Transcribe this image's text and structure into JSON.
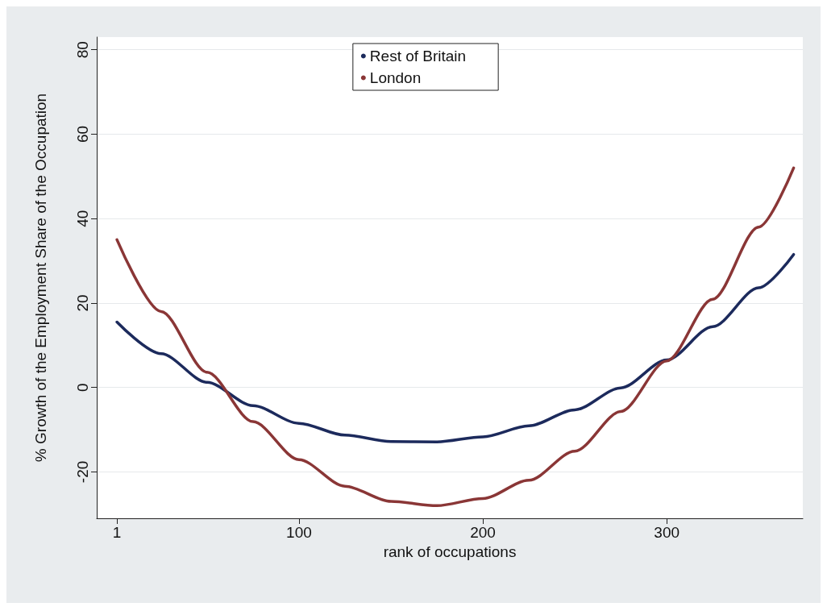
{
  "chart_data": {
    "type": "line",
    "xlabel": "rank of occupations",
    "ylabel": "% Growth of the Employment Share of the Occupation",
    "x": [
      1,
      25,
      50,
      75,
      100,
      125,
      150,
      175,
      200,
      225,
      250,
      275,
      300,
      325,
      350,
      369
    ],
    "series": [
      {
        "name": "Rest of Britain",
        "color": "#1c2a5c",
        "values": [
          15.5,
          8.0,
          1.2,
          -4.3,
          -8.5,
          -11.3,
          -12.8,
          -12.9,
          -11.7,
          -9.1,
          -5.3,
          -0.1,
          6.5,
          14.4,
          23.6,
          31.5
        ]
      },
      {
        "name": "London",
        "color": "#8a3636",
        "values": [
          35,
          18.0,
          3.6,
          -8.1,
          -17.1,
          -23.4,
          -27.0,
          -28.0,
          -26.3,
          -22.0,
          -15.1,
          -5.7,
          6.3,
          20.9,
          38.0,
          52
        ]
      }
    ],
    "xlim": [
      -10,
      374
    ],
    "xticks": [
      1,
      100,
      200,
      300
    ],
    "ylim": [
      -31,
      83
    ],
    "yticks": [
      -20,
      0,
      20,
      40,
      60,
      80
    ],
    "grid": "y",
    "legend": "top",
    "line_style": "solid"
  }
}
